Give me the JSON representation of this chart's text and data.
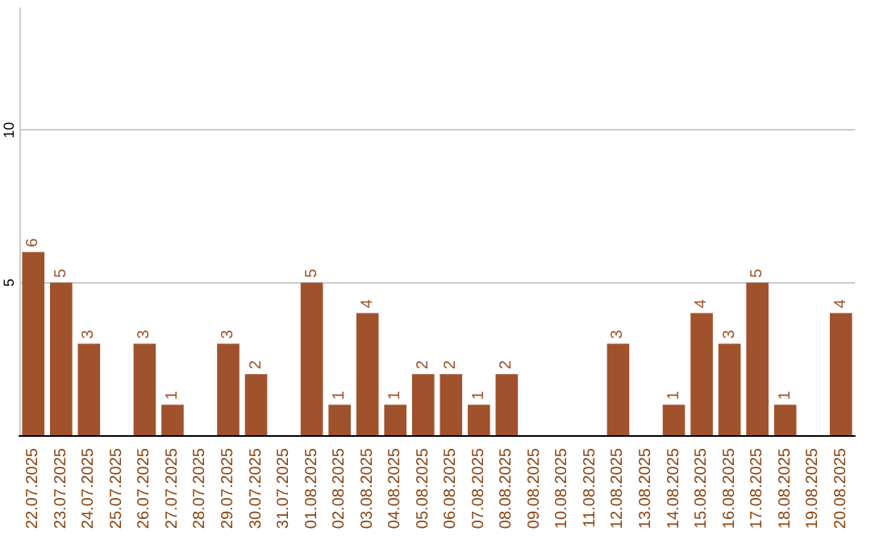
{
  "chart_data": {
    "type": "bar",
    "categories": [
      "22.07.2025",
      "23.07.2025",
      "24.07.2025",
      "25.07.2025",
      "26.07.2025",
      "27.07.2025",
      "28.07.2025",
      "29.07.2025",
      "30.07.2025",
      "31.07.2025",
      "01.08.2025",
      "02.08.2025",
      "03.08.2025",
      "04.08.2025",
      "05.08.2025",
      "06.08.2025",
      "07.08.2025",
      "08.08.2025",
      "09.08.2025",
      "10.08.2025",
      "11.08.2025",
      "12.08.2025",
      "13.08.2025",
      "14.08.2025",
      "15.08.2025",
      "16.08.2025",
      "17.08.2025",
      "18.08.2025",
      "19.08.2025",
      "20.08.2025"
    ],
    "values": [
      6,
      5,
      3,
      0,
      3,
      1,
      0,
      3,
      2,
      0,
      5,
      1,
      4,
      1,
      2,
      2,
      1,
      2,
      0,
      0,
      0,
      3,
      0,
      1,
      4,
      3,
      5,
      1,
      0,
      4
    ],
    "value_labels": [
      "6",
      "5",
      "3",
      null,
      "3",
      "1",
      null,
      "3",
      "2",
      null,
      "5",
      "1",
      "4",
      "1",
      "2",
      "2",
      "1",
      "2",
      null,
      null,
      null,
      "3",
      null,
      "1",
      "4",
      "3",
      "5",
      "1",
      null,
      "4"
    ],
    "color": "#a0522d",
    "ylim": [
      0,
      14
    ],
    "yticks": [
      5,
      10
    ],
    "grid": "y"
  }
}
